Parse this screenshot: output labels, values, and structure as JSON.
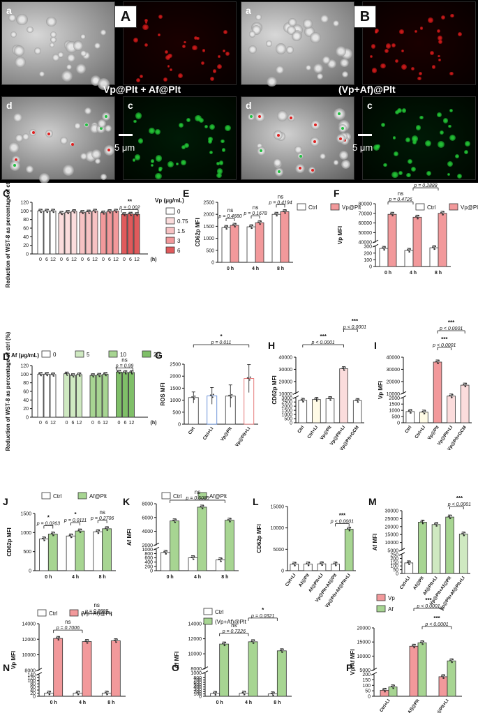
{
  "imaging": {
    "panel_a": {
      "label": "A",
      "caption": "Vp@Plt + Af@Plt",
      "scale": "5 μm",
      "tiles": [
        "a",
        "b",
        "d",
        "c"
      ]
    },
    "panel_b": {
      "label": "B",
      "caption": "(Vp+Af)@Plt",
      "scale": "5 μm",
      "tiles": [
        "a",
        "b",
        "d",
        "c"
      ]
    }
  },
  "colors": {
    "red_dark": "#e05a5c",
    "red_mid": "#f2999b",
    "red_light": "#f7c2c3",
    "green_dark": "#7fbf68",
    "green_mid": "#a7d592",
    "green_light": "#cfe9c1",
    "white": "#ffffff",
    "pink_light": "#fbdcdc"
  },
  "chart_data": [
    {
      "panel": "C",
      "type": "bar",
      "ylabel": "Reduction of WST-8 as percentage of ctrl (%)",
      "xlabel_unit": "(h)",
      "legend_title": "Vp (μg/mL)",
      "legend": [
        "0",
        "0.75",
        "1.5",
        "3",
        "6"
      ],
      "groups": [
        {
          "name": "0",
          "x": [
            "0",
            "6",
            "12"
          ],
          "values": [
            100,
            100,
            100
          ]
        },
        {
          "name": "0.75",
          "x": [
            "0",
            "6",
            "12"
          ],
          "values": [
            95,
            97,
            99
          ]
        },
        {
          "name": "1.5",
          "x": [
            "0",
            "6",
            "12"
          ],
          "values": [
            97,
            98,
            100
          ]
        },
        {
          "name": "3",
          "x": [
            "0",
            "6",
            "12"
          ],
          "values": [
            96,
            99,
            100
          ]
        },
        {
          "name": "6",
          "x": [
            "0",
            "6",
            "12"
          ],
          "values": [
            92,
            93,
            92
          ]
        }
      ],
      "yticks": [
        "0",
        "20",
        "40",
        "60",
        "80",
        "100",
        "120"
      ],
      "ylim": [
        0,
        120
      ],
      "annotations": [
        {
          "text": "**",
          "p": "p = 0.002"
        }
      ]
    },
    {
      "panel": "E",
      "type": "bar",
      "ylabel": "CD62p MFI",
      "categories": [
        "0 h",
        "4 h",
        "8 h"
      ],
      "series": [
        {
          "name": "Ctrl",
          "values": [
            1450,
            1480,
            2000
          ]
        },
        {
          "name": "Vp@Plt",
          "values": [
            1540,
            1650,
            2110
          ]
        }
      ],
      "yticks": [
        "0",
        "500",
        "1000",
        "1500",
        "2000",
        "2500"
      ],
      "ylim": [
        0,
        2500
      ],
      "annotations": [
        {
          "text": "ns",
          "p": "p = 0.4680"
        },
        {
          "text": "ns",
          "p": "p = 0.1678"
        },
        {
          "text": "ns",
          "p": "p = 0.4194"
        }
      ]
    },
    {
      "panel": "F",
      "type": "bar",
      "ylabel": "Vp MFI",
      "categories": [
        "0 h",
        "4 h",
        "8 h"
      ],
      "series": [
        {
          "name": "Ctrl",
          "values": [
            270,
            240,
            280
          ]
        },
        {
          "name": "Vp@Plt",
          "values": [
            69000,
            66000,
            70000
          ]
        }
      ],
      "yticks_lower": [
        "0",
        "100",
        "200",
        "300"
      ],
      "yticks_upper": [
        "40000",
        "50000",
        "60000",
        "70000",
        "80000"
      ],
      "annotations": [
        {
          "text": "ns",
          "p": "p = 0.4726"
        },
        {
          "text": "ns",
          "p": "p = 0.2888"
        }
      ]
    },
    {
      "panel": "D",
      "type": "bar",
      "ylabel": "Reduction of WST-8 as percentage of ctrl (%)",
      "xlabel_unit": "(h)",
      "legend_title": "Af (μg/mL)",
      "legend": [
        "0",
        "5",
        "10",
        "20"
      ],
      "groups": [
        {
          "name": "0",
          "x": [
            "0",
            "6",
            "12"
          ],
          "values": [
            100,
            100,
            99
          ]
        },
        {
          "name": "5",
          "x": [
            "0",
            "6",
            "12"
          ],
          "values": [
            101,
            97,
            99
          ]
        },
        {
          "name": "10",
          "x": [
            "0",
            "6",
            "12"
          ],
          "values": [
            97,
            98,
            100
          ]
        },
        {
          "name": "20",
          "x": [
            "0",
            "6",
            "12"
          ],
          "values": [
            105,
            104,
            104
          ]
        }
      ],
      "yticks": [
        "0",
        "20",
        "40",
        "60",
        "80",
        "100",
        "120"
      ],
      "ylim": [
        0,
        120
      ],
      "annotations": [
        {
          "text": "ns",
          "p": "p = 0.99"
        }
      ]
    },
    {
      "panel": "G",
      "type": "bar",
      "ylabel": "ROS MFI",
      "categories": [
        "Ctrl",
        "Ctrl+LI",
        "Vp@Plt",
        "Vp@Plt+LI"
      ],
      "values": [
        1110,
        1180,
        1170,
        1900
      ],
      "yticks": [
        "0",
        "500",
        "1000",
        "1500",
        "2000",
        "2500"
      ],
      "ylim": [
        0,
        2500
      ],
      "annotations": [
        {
          "text": "*",
          "p": "p = 0.011"
        }
      ]
    },
    {
      "panel": "H",
      "type": "bar",
      "ylabel": "CD62p MFI",
      "categories": [
        "Ctrl",
        "Ctrl+LI",
        "Vp@Plt",
        "Vp@Plt+LI",
        "Vp@Plt+GCM"
      ],
      "values": [
        2700,
        2800,
        2900,
        30500,
        4300
      ],
      "yticks_lower": [
        "0",
        "500",
        "1000",
        "1500",
        "2000",
        "2500",
        "3000"
      ],
      "yticks_upper": [
        "10000",
        "20000",
        "30000",
        "40000"
      ],
      "annotations": [
        {
          "text": "***",
          "p": "p < 0.0001"
        },
        {
          "text": "***",
          "p": "p < 0.0001"
        }
      ]
    },
    {
      "panel": "I",
      "type": "bar",
      "ylabel": "Vp MFI",
      "categories": [
        "Ctrl",
        "Ctrl+LI",
        "Vp@Plt",
        "Vp@Plt+LI",
        "Vp@Plt+GCM"
      ],
      "values": [
        900,
        850,
        36000,
        8000,
        17000
      ],
      "yticks_lower": [
        "0",
        "500",
        "1000",
        "1500",
        "2000"
      ],
      "yticks_upper": [
        "10000",
        "20000",
        "30000",
        "40000"
      ],
      "annotations": [
        {
          "text": "***",
          "p": "p < 0.0001"
        },
        {
          "text": "***",
          "p": "p < 0.0001"
        }
      ]
    },
    {
      "panel": "J",
      "type": "bar",
      "ylabel": "CD62p MFI",
      "categories": [
        "0 h",
        "4 h",
        "8 h"
      ],
      "series": [
        {
          "name": "Ctrl",
          "values": [
            830,
            910,
            1020
          ]
        },
        {
          "name": "Af@Plt",
          "values": [
            960,
            1040,
            1100
          ]
        }
      ],
      "yticks": [
        "0",
        "500",
        "1000",
        "1500"
      ],
      "ylim": [
        0,
        1500
      ],
      "annotations": [
        {
          "text": "*",
          "p": "p = 0.0263"
        },
        {
          "text": "*",
          "p": "p = 0.0111"
        },
        {
          "text": "ns",
          "p": "p = 0.2706"
        }
      ]
    },
    {
      "panel": "K",
      "type": "bar",
      "ylabel": "Af MFI",
      "categories": [
        "0 h",
        "4 h",
        "8 h"
      ],
      "series": [
        {
          "name": "Ctrl",
          "values": [
            850,
            600,
            500
          ]
        },
        {
          "name": "Af@Plt",
          "values": [
            5500,
            7500,
            5600
          ]
        }
      ],
      "yticks_lower": [
        "0",
        "200",
        "400",
        "600",
        "800",
        "1000"
      ],
      "yticks_upper": [
        "2000",
        "4000",
        "6000",
        "8000"
      ],
      "annotations": [
        {
          "text": "ns",
          "p": "p = 0.5085"
        }
      ]
    },
    {
      "panel": "L",
      "type": "bar",
      "ylabel": "CD62p MFI",
      "categories": [
        "Ctrl+LI",
        "Af@Plt",
        "Af@Plt+LI",
        "Vp@Plt+Af@Plt",
        "Vp@Plt+Af@Plt+LI"
      ],
      "values": [
        1500,
        1550,
        1600,
        1550,
        9700
      ],
      "yticks": [
        "0",
        "5000",
        "10000",
        "15000"
      ],
      "ylim": [
        0,
        15000
      ],
      "annotations": [
        {
          "text": "***",
          "p": "p < 0.0001"
        }
      ]
    },
    {
      "panel": "M",
      "type": "bar",
      "ylabel": "Af MFI",
      "categories": [
        "Ctrl+LI",
        "Af@Plt",
        "Af@Plt+LI",
        "Vp@Plt+Af@Plt",
        "Vp@Plt+Af@Plt+LI"
      ],
      "values": [
        140,
        22800,
        21300,
        26000,
        15300
      ],
      "yticks_lower": [
        "0",
        "50",
        "100",
        "150",
        "200",
        "250"
      ],
      "yticks_upper": [
        "5000",
        "10000",
        "15000",
        "20000",
        "25000",
        "30000"
      ],
      "annotations": [
        {
          "text": "***",
          "p": "p < 0.0001"
        }
      ]
    },
    {
      "panel": "N",
      "type": "bar",
      "ylabel": "Vp MFI",
      "categories": [
        "0 h",
        "4 h",
        "8 h"
      ],
      "series": [
        {
          "name": "Ctrl",
          "values": [
            20,
            20,
            20
          ]
        },
        {
          "name": "(Vp+Af)@Plt",
          "values": [
            12100,
            11700,
            11800
          ]
        }
      ],
      "yticks_lower": [
        "0",
        "20",
        "40",
        "60",
        "80",
        "100",
        "120",
        "140"
      ],
      "yticks_upper": [
        "8000",
        "10000",
        "12000",
        "14000"
      ],
      "annotations": [
        {
          "text": "ns",
          "p": "p = 0.7006"
        },
        {
          "text": "ns",
          "p": "p = 0.9895"
        }
      ]
    },
    {
      "panel": "O",
      "type": "bar",
      "ylabel": "Af MFI",
      "categories": [
        "0 h",
        "4 h",
        "8 h"
      ],
      "series": [
        {
          "name": "Ctrl",
          "values": [
            120,
            130,
            100
          ]
        },
        {
          "name": "(Vp+Af)@Plt",
          "values": [
            11300,
            11600,
            10400
          ]
        }
      ],
      "yticks_lower": [
        "0",
        "100",
        "200",
        "300",
        "400",
        "500",
        "600",
        "700",
        "800",
        "1000"
      ],
      "yticks_upper": [
        "8000",
        "10000",
        "12000",
        "14000"
      ],
      "annotations": [
        {
          "text": "ns",
          "p": "p = 0.7226"
        },
        {
          "text": "*",
          "p": "p = 0.0321"
        }
      ]
    },
    {
      "panel": "P",
      "type": "bar",
      "ylabel": "Vp/Af MFI",
      "categories": [
        "Ctrl+LI",
        "(Vp+Af)@Plt",
        "(Vp+Af)@Plt+LI"
      ],
      "series": [
        {
          "name": "Vp",
          "values": [
            55,
            13500,
            2700
          ]
        },
        {
          "name": "Af",
          "values": [
            85,
            14700,
            8300
          ]
        }
      ],
      "yticks_lower": [
        "0",
        "50",
        "100",
        "150",
        "200"
      ],
      "yticks_upper": [
        "5000",
        "10000",
        "15000",
        "20000"
      ],
      "annotations": [
        {
          "text": "***",
          "p": "p < 0.0001"
        },
        {
          "text": "***",
          "p": "p < 0.0001"
        }
      ]
    }
  ]
}
